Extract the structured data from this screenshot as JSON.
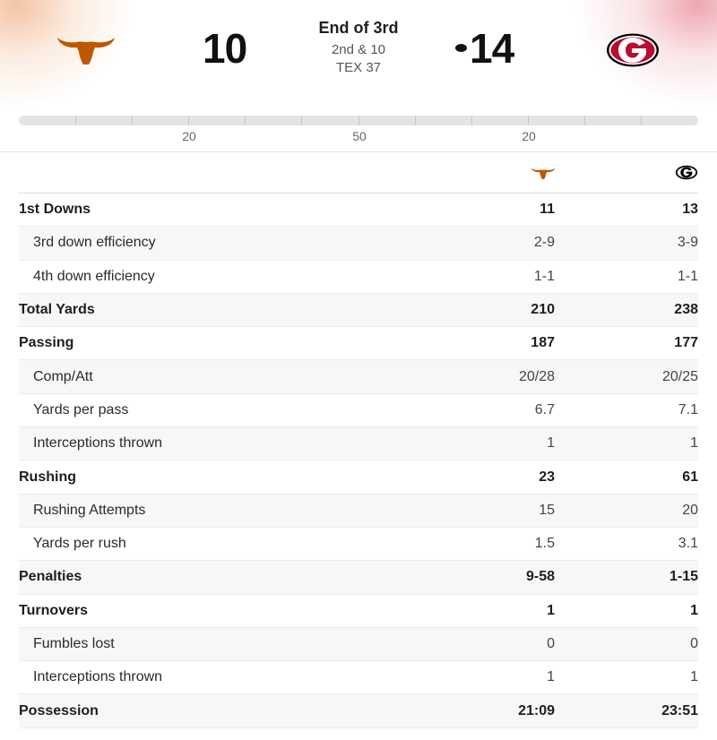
{
  "header": {
    "home_team": {
      "logo": "texas-longhorn-logo",
      "score": "10",
      "color": "#BF5700"
    },
    "away_team": {
      "logo": "georgia-g-logo",
      "score": "14",
      "color": "#BA0C2F"
    },
    "status": {
      "period": "End of 3rd",
      "down": "2nd & 10",
      "spot": "TEX 37"
    }
  },
  "field": {
    "yard_labels": [
      "20",
      "50",
      "20"
    ]
  },
  "stats": [
    {
      "label": "1st Downs",
      "home": "11",
      "away": "13",
      "main": true
    },
    {
      "label": "3rd down efficiency",
      "home": "2-9",
      "away": "3-9",
      "main": false
    },
    {
      "label": "4th down efficiency",
      "home": "1-1",
      "away": "1-1",
      "main": false
    },
    {
      "label": "Total Yards",
      "home": "210",
      "away": "238",
      "main": true
    },
    {
      "label": "Passing",
      "home": "187",
      "away": "177",
      "main": true
    },
    {
      "label": "Comp/Att",
      "home": "20/28",
      "away": "20/25",
      "main": false
    },
    {
      "label": "Yards per pass",
      "home": "6.7",
      "away": "7.1",
      "main": false
    },
    {
      "label": "Interceptions thrown",
      "home": "1",
      "away": "1",
      "main": false
    },
    {
      "label": "Rushing",
      "home": "23",
      "away": "61",
      "main": true
    },
    {
      "label": "Rushing Attempts",
      "home": "15",
      "away": "20",
      "main": false
    },
    {
      "label": "Yards per rush",
      "home": "1.5",
      "away": "3.1",
      "main": false
    },
    {
      "label": "Penalties",
      "home": "9-58",
      "away": "1-15",
      "main": true
    },
    {
      "label": "Turnovers",
      "home": "1",
      "away": "1",
      "main": true
    },
    {
      "label": "Fumbles lost",
      "home": "0",
      "away": "0",
      "main": false
    },
    {
      "label": "Interceptions thrown",
      "home": "1",
      "away": "1",
      "main": false
    },
    {
      "label": "Possession",
      "home": "21:09",
      "away": "23:51",
      "main": true
    }
  ]
}
